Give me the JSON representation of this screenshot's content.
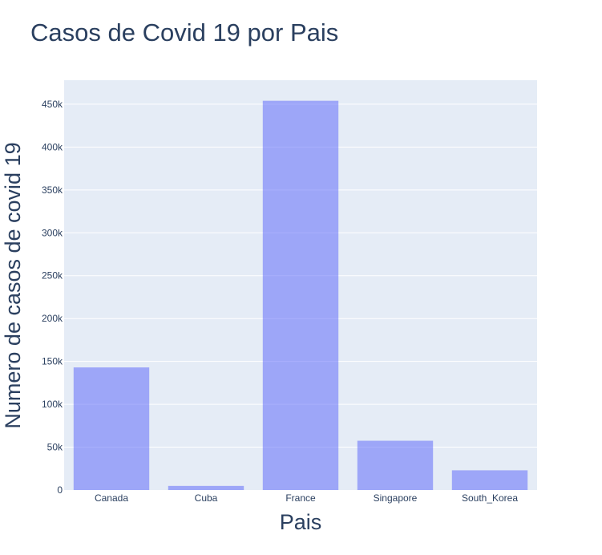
{
  "chart_data": {
    "type": "bar",
    "title": "Casos de Covid 19 por Pais",
    "xlabel": "Pais",
    "ylabel": "Numero de casos de covid 19",
    "categories": [
      "Canada",
      "Cuba",
      "France",
      "Singapore",
      "South_Korea"
    ],
    "values": [
      143000,
      4800,
      454000,
      57500,
      23000
    ],
    "ylim": [
      0,
      478000
    ],
    "yticks": [
      0,
      50000,
      100000,
      150000,
      200000,
      250000,
      300000,
      350000,
      400000,
      450000
    ],
    "ytick_labels": [
      "0",
      "50k",
      "100k",
      "150k",
      "200k",
      "250k",
      "300k",
      "350k",
      "400k",
      "450k"
    ],
    "grid": true,
    "legend": "none",
    "colors": {
      "bar": "#636efa",
      "bar_opacity": 0.55,
      "plot_bg": "#e5ecf6",
      "grid": "#ffffff",
      "text": "#2a3f5f"
    }
  }
}
